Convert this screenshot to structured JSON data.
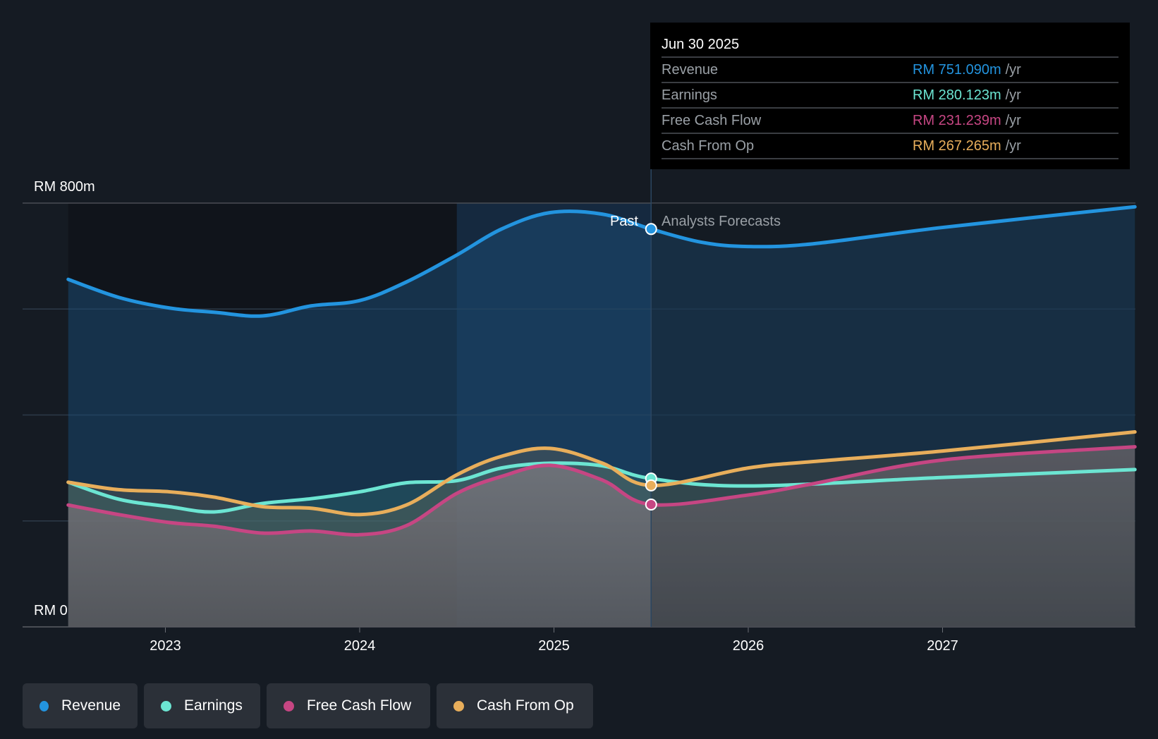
{
  "tooltip": {
    "date": "Jun 30 2025",
    "rows": [
      {
        "label": "Revenue",
        "value": "RM 751.090m",
        "unit": "/yr",
        "color": "#2394df"
      },
      {
        "label": "Earnings",
        "value": "RM 280.123m",
        "unit": "/yr",
        "color": "#6ce5d2"
      },
      {
        "label": "Free Cash Flow",
        "value": "RM 231.239m",
        "unit": "/yr",
        "color": "#c64683"
      },
      {
        "label": "Cash From Op",
        "value": "RM 267.265m",
        "unit": "/yr",
        "color": "#e8ae5b"
      }
    ]
  },
  "legend": [
    {
      "label": "Revenue",
      "color": "#2394df"
    },
    {
      "label": "Earnings",
      "color": "#6ce5d2"
    },
    {
      "label": "Free Cash Flow",
      "color": "#c64683"
    },
    {
      "label": "Cash From Op",
      "color": "#e8ae5b"
    }
  ],
  "chart_data": {
    "type": "area",
    "title": "",
    "xlabel": "",
    "ylabel": "",
    "y_unit": "RM m",
    "ylim": [
      0,
      800
    ],
    "xlim": [
      2022.25,
      2028.0
    ],
    "y_tick_labels": [
      {
        "value": 800,
        "label": "RM 800m"
      },
      {
        "value": 0,
        "label": "RM 0"
      }
    ],
    "gridlines_y": [
      0,
      200,
      400,
      600,
      800
    ],
    "x_ticks": [
      2023,
      2024,
      2025,
      2026,
      2027
    ],
    "x_tick_labels": [
      "2023",
      "2024",
      "2025",
      "2026",
      "2027"
    ],
    "past_label": "Past",
    "forecast_label": "Analysts Forecasts",
    "divider_x": 2025.5,
    "highlight_range": [
      2024.5,
      2025.5
    ],
    "grid": true,
    "legend_position": "bottom-left",
    "series": [
      {
        "name": "Revenue",
        "color": "#2394df",
        "x": [
          2022.5,
          2022.76,
          2023.02,
          2023.25,
          2023.5,
          2023.75,
          2024.0,
          2024.24,
          2024.5,
          2024.73,
          2024.98,
          2025.25,
          2025.5,
          2025.76,
          2026.0,
          2026.33,
          2027.0,
          2027.99
        ],
        "y": [
          656,
          622,
          602,
          594,
          587,
          606,
          616,
          651,
          702,
          751,
          782,
          779,
          751,
          726,
          718,
          723,
          754,
          793
        ]
      },
      {
        "name": "Earnings",
        "color": "#6ce5d2",
        "x": [
          2022.5,
          2022.76,
          2023.02,
          2023.25,
          2023.5,
          2023.75,
          2024.0,
          2024.24,
          2024.5,
          2024.73,
          2024.98,
          2025.25,
          2025.5,
          2026.0,
          2027.0,
          2027.99
        ],
        "y": [
          273,
          241,
          227,
          217,
          233,
          242,
          255,
          272,
          276,
          300,
          309,
          304,
          280,
          266,
          282,
          297
        ]
      },
      {
        "name": "Free Cash Flow",
        "color": "#c64683",
        "x": [
          2022.5,
          2022.76,
          2023.02,
          2023.25,
          2023.5,
          2023.75,
          2024.0,
          2024.24,
          2024.5,
          2024.73,
          2024.98,
          2025.25,
          2025.5,
          2026.0,
          2026.33,
          2027.0,
          2027.99
        ],
        "y": [
          230,
          212,
          197,
          190,
          177,
          181,
          174,
          191,
          252,
          284,
          305,
          277,
          231,
          249,
          270,
          315,
          340
        ]
      },
      {
        "name": "Cash From Op",
        "color": "#e8ae5b",
        "x": [
          2022.5,
          2022.76,
          2023.02,
          2023.25,
          2023.5,
          2023.75,
          2024.0,
          2024.24,
          2024.5,
          2024.73,
          2024.98,
          2025.25,
          2025.5,
          2026.0,
          2026.33,
          2027.0,
          2027.99
        ],
        "y": [
          273,
          259,
          255,
          245,
          227,
          224,
          212,
          230,
          287,
          322,
          337,
          309,
          267,
          300,
          312,
          332,
          368
        ]
      }
    ],
    "markers_at": 2025.5
  }
}
